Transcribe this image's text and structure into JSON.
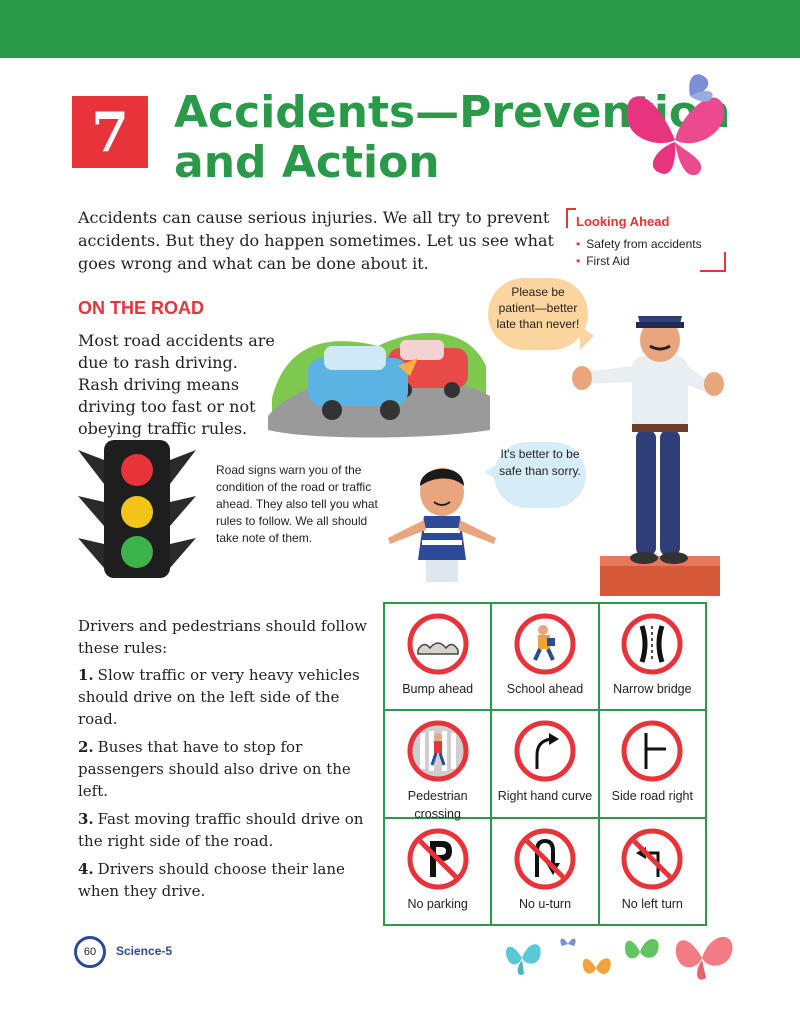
{
  "chapter": {
    "number": "7",
    "title_line1": "Accidents—Prevention",
    "title_line2": "and Action"
  },
  "intro": "Accidents can cause serious injuries. We all try to prevent accidents. But they do happen sometimes. Let us see what goes wrong and what can be done about it.",
  "looking_ahead": {
    "title": "Looking Ahead",
    "items": [
      "Safety from accidents",
      "First Aid"
    ]
  },
  "section": {
    "heading": "ON THE ROAD",
    "body": "Most road accidents are due to rash driving. Rash driving means driving too fast or not obeying traffic rules."
  },
  "speech": {
    "policeman": "Please be patient—better late than never!",
    "boy": "It's better to be safe than sorry."
  },
  "road_signs_text": "Road signs warn you of the condition of the road or traffic ahead. They also tell you what rules to follow. We all should take note of them.",
  "rules": {
    "intro": "Drivers and  pedestrians should follow these rules:",
    "items": [
      {
        "num": "1.",
        "text": "Slow traffic or very heavy vehicles should drive on the left side of the road."
      },
      {
        "num": "2.",
        "text": "Buses that have to stop for passengers should also drive on the left."
      },
      {
        "num": "3.",
        "text": "Fast moving traffic should drive on the right side of the road."
      },
      {
        "num": "4.",
        "text": "Drivers should choose their lane when they drive."
      }
    ]
  },
  "signs": [
    {
      "label": "Bump ahead",
      "icon": "bump-ahead-sign-icon"
    },
    {
      "label": "School ahead",
      "icon": "school-ahead-sign-icon"
    },
    {
      "label": "Narrow bridge",
      "icon": "narrow-bridge-sign-icon"
    },
    {
      "label": "Pedestrian crossing",
      "icon": "pedestrian-crossing-sign-icon"
    },
    {
      "label": "Right hand curve",
      "icon": "right-hand-curve-sign-icon"
    },
    {
      "label": "Side road right",
      "icon": "side-road-right-sign-icon"
    },
    {
      "label": "No parking",
      "icon": "no-parking-sign-icon"
    },
    {
      "label": "No u-turn",
      "icon": "no-u-turn-sign-icon"
    },
    {
      "label": "No left turn",
      "icon": "no-left-turn-sign-icon"
    }
  ],
  "footer": {
    "page_number": "60",
    "book": "Science-5"
  },
  "colors": {
    "green": "#2a9a4a",
    "red": "#e8333a",
    "blue": "#2b4a9a",
    "text": "#231f20"
  }
}
